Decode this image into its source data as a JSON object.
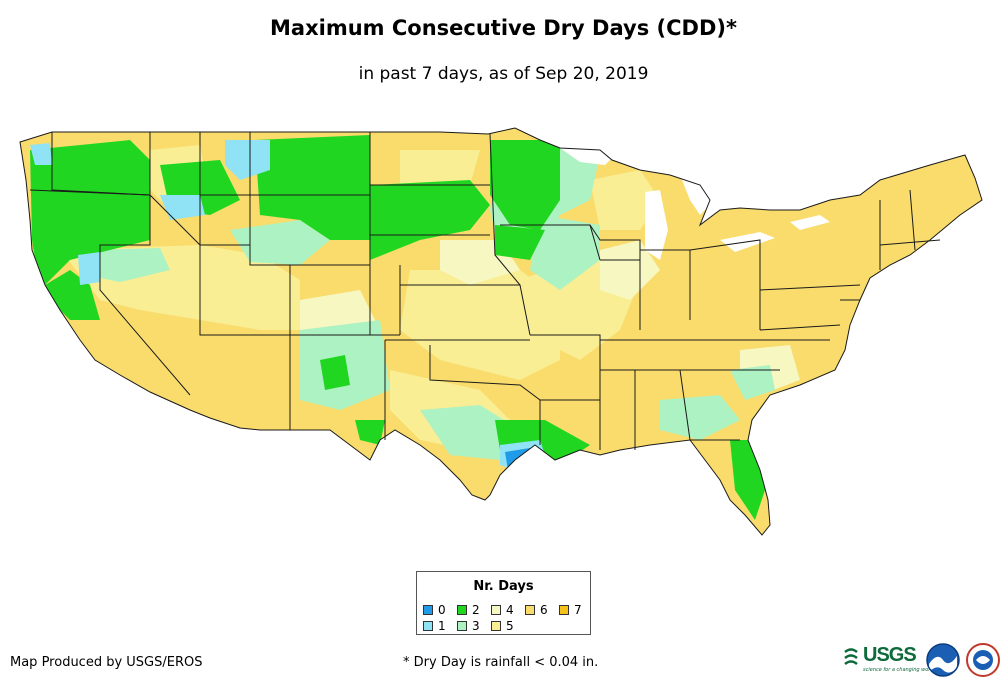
{
  "header": {
    "title": "Maximum Consecutive Dry Days (CDD)*",
    "subtitle": "in past 7 days, as of Sep 20, 2019"
  },
  "legend": {
    "title": "Nr. Days",
    "items": [
      {
        "label": "0",
        "color": "#1f9be8"
      },
      {
        "label": "1",
        "color": "#8fe3f5"
      },
      {
        "label": "2",
        "color": "#21d621"
      },
      {
        "label": "3",
        "color": "#adf2c2"
      },
      {
        "label": "4",
        "color": "#f7f7c2"
      },
      {
        "label": "5",
        "color": "#f9ee94"
      },
      {
        "label": "6",
        "color": "#f9dc6c"
      },
      {
        "label": "7",
        "color": "#f5c21c"
      }
    ]
  },
  "footer": {
    "credit": "Map Produced by USGS/EROS",
    "footnote": "* Dry Day is rainfall < 0.04 in."
  },
  "logos": {
    "usgs": "USGS",
    "usgs_tagline": "science for a changing world",
    "noaa": "NOAA",
    "nws": "NWS"
  }
}
